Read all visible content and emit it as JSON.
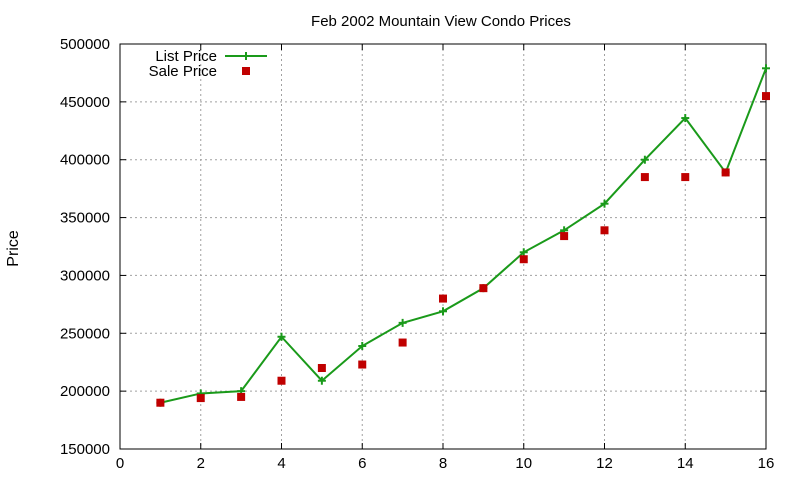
{
  "chart_data": {
    "type": "line",
    "title": "Feb 2002 Mountain View Condo Prices",
    "xlabel": "",
    "ylabel": "Price",
    "xlim": [
      0,
      16
    ],
    "ylim": [
      150000,
      500000
    ],
    "xticks": [
      0,
      2,
      4,
      6,
      8,
      10,
      12,
      14,
      16
    ],
    "yticks": [
      150000,
      200000,
      250000,
      300000,
      350000,
      400000,
      450000,
      500000
    ],
    "grid": true,
    "legend_position": "top-left",
    "series": [
      {
        "name": "List Price",
        "style": "linespoints",
        "color": "#1a9a1a",
        "x": [
          1,
          2,
          3,
          4,
          5,
          6,
          7,
          8,
          9,
          10,
          11,
          12,
          13,
          14,
          15,
          16
        ],
        "y": [
          190000,
          198000,
          200000,
          247000,
          209000,
          239000,
          259000,
          269000,
          289000,
          320000,
          339000,
          362000,
          400000,
          436000,
          389000,
          479000
        ]
      },
      {
        "name": "Sale Price",
        "style": "points",
        "color": "#c00000",
        "x": [
          1,
          2,
          3,
          4,
          5,
          6,
          7,
          8,
          9,
          10,
          11,
          12,
          13,
          14,
          15,
          16
        ],
        "y": [
          190000,
          194000,
          195000,
          209000,
          220000,
          223000,
          242000,
          280000,
          289000,
          314000,
          334000,
          339000,
          385000,
          385000,
          389000,
          455000
        ]
      }
    ]
  }
}
